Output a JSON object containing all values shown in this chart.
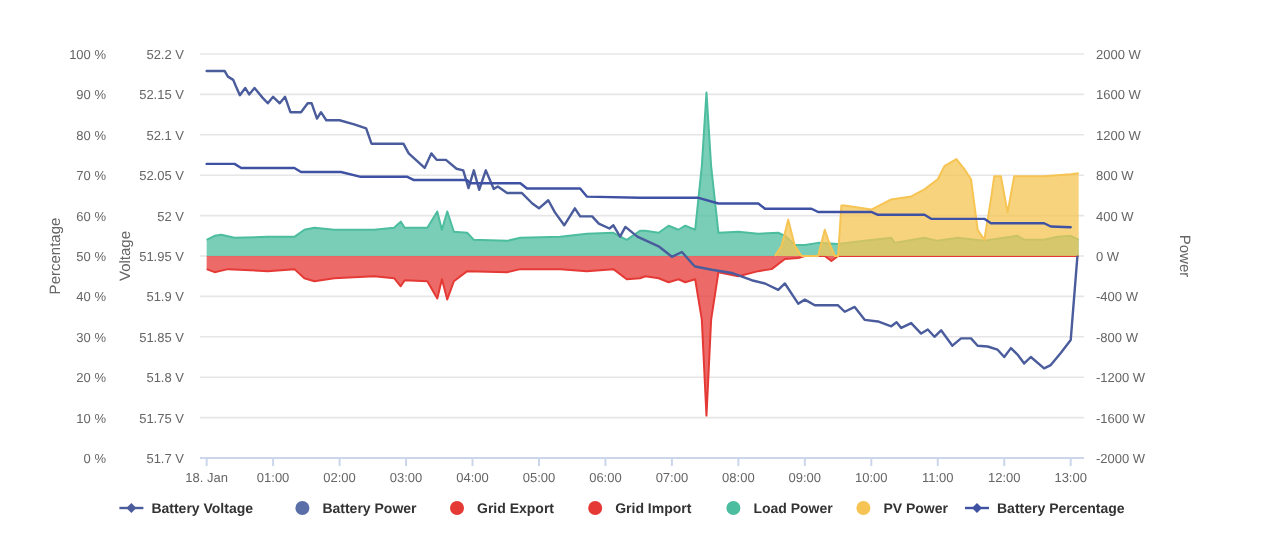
{
  "chart_data": {
    "type": "line",
    "ylabel": "Percentage",
    "y2label": "Voltage",
    "y3label": "Power",
    "xlim": [
      -0.1,
      13.2
    ],
    "xticks": [
      {
        "value": 0,
        "label": "18. Jan"
      },
      {
        "value": 1,
        "label": "01:00"
      },
      {
        "value": 2,
        "label": "02:00"
      },
      {
        "value": 3,
        "label": "03:00"
      },
      {
        "value": 4,
        "label": "04:00"
      },
      {
        "value": 5,
        "label": "05:00"
      },
      {
        "value": 6,
        "label": "06:00"
      },
      {
        "value": 7,
        "label": "07:00"
      },
      {
        "value": 8,
        "label": "08:00"
      },
      {
        "value": 9,
        "label": "09:00"
      },
      {
        "value": 10,
        "label": "10:00"
      },
      {
        "value": 11,
        "label": "11:00"
      },
      {
        "value": 12,
        "label": "12:00"
      },
      {
        "value": 13,
        "label": "13:00"
      }
    ],
    "ylim": [
      0,
      100
    ],
    "yticks": [
      {
        "value": 0,
        "label": "0 %"
      },
      {
        "value": 10,
        "label": "10 %"
      },
      {
        "value": 20,
        "label": "20 %"
      },
      {
        "value": 30,
        "label": "30 %"
      },
      {
        "value": 40,
        "label": "40 %"
      },
      {
        "value": 50,
        "label": "50 %"
      },
      {
        "value": 60,
        "label": "60 %"
      },
      {
        "value": 70,
        "label": "70 %"
      },
      {
        "value": 80,
        "label": "80 %"
      },
      {
        "value": 90,
        "label": "90 %"
      },
      {
        "value": 100,
        "label": "100 %"
      }
    ],
    "y2lim": [
      51.7,
      52.2
    ],
    "y2ticks": [
      {
        "value": 51.7,
        "label": "51.7 V"
      },
      {
        "value": 51.75,
        "label": "51.75 V"
      },
      {
        "value": 51.8,
        "label": "51.8 V"
      },
      {
        "value": 51.85,
        "label": "51.85 V"
      },
      {
        "value": 51.9,
        "label": "51.9 V"
      },
      {
        "value": 51.95,
        "label": "51.95 V"
      },
      {
        "value": 52,
        "label": "52 V"
      },
      {
        "value": 52.05,
        "label": "52.05 V"
      },
      {
        "value": 52.1,
        "label": "52.1 V"
      },
      {
        "value": 52.15,
        "label": "52.15 V"
      },
      {
        "value": 52.2,
        "label": "52.2 V"
      }
    ],
    "y3lim": [
      -2000,
      2000
    ],
    "y3ticks": [
      {
        "value": -2000,
        "label": "-2000 W"
      },
      {
        "value": -1600,
        "label": "-1600 W"
      },
      {
        "value": -1200,
        "label": "-1200 W"
      },
      {
        "value": -800,
        "label": "-800 W"
      },
      {
        "value": -400,
        "label": "-400 W"
      },
      {
        "value": 0,
        "label": "0 W"
      },
      {
        "value": 400,
        "label": "400 W"
      },
      {
        "value": 800,
        "label": "800 W"
      },
      {
        "value": 1200,
        "label": "1200 W"
      },
      {
        "value": 1600,
        "label": "1600 W"
      },
      {
        "value": 2000,
        "label": "2000 W"
      }
    ],
    "grid": "y",
    "legend": "bottom",
    "series": [
      {
        "name": "Battery Voltage",
        "axis": "y2",
        "color": "#4a5c9c",
        "x": [
          0,
          0.27,
          0.32,
          0.4,
          0.44,
          0.5,
          0.58,
          0.64,
          0.72,
          0.84,
          0.92,
          1.0,
          1.1,
          1.18,
          1.26,
          1.42,
          1.52,
          1.58,
          1.66,
          1.72,
          1.8,
          2.0,
          2.22,
          2.4,
          2.48,
          2.96,
          3.04,
          3.28,
          3.38,
          3.46,
          3.6,
          3.76,
          3.86,
          3.94,
          4.02,
          4.1,
          4.2,
          4.32,
          4.38,
          4.52,
          4.74,
          4.9,
          5.0,
          5.14,
          5.24,
          5.38,
          5.54,
          5.62,
          5.8,
          5.9,
          6.06,
          6.12,
          6.22,
          6.3,
          6.48,
          6.8,
          7.0,
          7.15,
          7.3,
          7.35,
          7.6,
          7.9,
          8.2,
          8.4,
          8.6,
          8.7,
          8.9,
          9.0,
          9.15,
          9.5,
          9.6,
          9.75,
          9.9,
          10.1,
          10.3,
          10.38,
          10.45,
          10.6,
          10.75,
          10.85,
          10.95,
          11.05,
          11.22,
          11.35,
          11.5,
          11.6,
          11.75,
          11.9,
          12.0,
          12.1,
          12.2,
          12.3,
          12.4,
          12.6,
          12.7,
          12.85,
          13.0,
          13.1
        ],
        "values": [
          52.179,
          52.179,
          52.172,
          52.168,
          52.16,
          52.149,
          52.158,
          52.15,
          52.158,
          52.146,
          52.139,
          52.147,
          52.139,
          52.147,
          52.128,
          52.128,
          52.139,
          52.139,
          52.12,
          52.128,
          52.118,
          52.118,
          52.113,
          52.108,
          52.089,
          52.089,
          52.077,
          52.059,
          52.077,
          52.069,
          52.069,
          52.058,
          52.056,
          52.034,
          52.056,
          52.032,
          52.056,
          52.033,
          52.036,
          52.028,
          52.028,
          52.015,
          52.009,
          52.019,
          52.004,
          51.988,
          52.009,
          51.999,
          51.999,
          51.99,
          51.984,
          51.988,
          51.974,
          51.986,
          51.974,
          51.962,
          51.949,
          51.955,
          51.941,
          51.937,
          51.933,
          51.929,
          51.92,
          51.916,
          51.908,
          51.916,
          51.891,
          51.896,
          51.889,
          51.889,
          51.881,
          51.887,
          51.871,
          51.869,
          51.863,
          51.868,
          51.861,
          51.867,
          51.854,
          51.859,
          51.85,
          51.858,
          51.839,
          51.848,
          51.848,
          51.839,
          51.838,
          51.834,
          51.825,
          51.836,
          51.828,
          51.817,
          51.825,
          51.811,
          51.815,
          51.83,
          51.846,
          51.949
        ]
      },
      {
        "name": "Battery Power",
        "type": "area",
        "axis": "y3",
        "color": "#5a6ea8"
      },
      {
        "name": "Grid Export",
        "type": "area",
        "axis": "y3",
        "color": "#e53935"
      },
      {
        "name": "Grid Import",
        "type": "area",
        "axis": "y3",
        "color": "#e53935",
        "x": [
          0,
          0.12,
          0.32,
          0.92,
          1.32,
          1.47,
          1.62,
          1.92,
          2.52,
          2.82,
          2.92,
          2.98,
          3.32,
          3.47,
          3.54,
          3.62,
          3.72,
          3.92,
          4.52,
          4.72,
          5.32,
          5.72,
          6.12,
          6.32,
          6.52,
          6.6,
          6.8,
          6.95,
          7.1,
          7.2,
          7.35,
          7.45,
          7.52,
          7.59,
          7.7,
          8.0,
          8.3,
          8.5,
          8.7,
          8.9,
          9.0,
          9.3,
          9.4,
          9.5,
          13.12
        ],
        "values": [
          -130,
          -160,
          -130,
          -150,
          -130,
          -220,
          -250,
          -220,
          -200,
          -220,
          -300,
          -240,
          -250,
          -420,
          -230,
          -430,
          -250,
          -150,
          -160,
          -130,
          -130,
          -150,
          -130,
          -230,
          -220,
          -200,
          -220,
          -260,
          -230,
          -260,
          -230,
          -630,
          -1580,
          -630,
          -160,
          -200,
          -150,
          -130,
          -30,
          -20,
          0,
          0,
          -50,
          0,
          0
        ]
      },
      {
        "name": "Load Power",
        "type": "area",
        "axis": "y3",
        "color": "#4dbd9f",
        "x": [
          0,
          0.12,
          0.22,
          0.42,
          0.92,
          1.32,
          1.47,
          1.62,
          1.92,
          2.52,
          2.82,
          2.92,
          2.98,
          3.32,
          3.47,
          3.54,
          3.62,
          3.72,
          3.92,
          4.02,
          4.52,
          4.72,
          5.32,
          5.72,
          6.12,
          6.32,
          6.52,
          6.6,
          6.8,
          6.95,
          7.1,
          7.2,
          7.35,
          7.45,
          7.52,
          7.59,
          7.7,
          8.0,
          8.3,
          8.6,
          8.7,
          8.85,
          9.0,
          9.2,
          9.5,
          9.9,
          10.3,
          10.35,
          10.8,
          11.0,
          11.3,
          11.7,
          12.2,
          12.3,
          12.6,
          12.8,
          13.0,
          13.12
        ],
        "values": [
          160,
          200,
          210,
          180,
          190,
          190,
          260,
          280,
          260,
          260,
          280,
          340,
          280,
          280,
          440,
          260,
          440,
          240,
          230,
          160,
          150,
          180,
          190,
          220,
          230,
          160,
          250,
          250,
          230,
          300,
          260,
          300,
          260,
          890,
          1620,
          890,
          230,
          240,
          220,
          230,
          200,
          110,
          110,
          130,
          120,
          150,
          180,
          130,
          180,
          150,
          180,
          150,
          200,
          160,
          160,
          190,
          200,
          160
        ]
      },
      {
        "name": "PV Power",
        "type": "area",
        "axis": "y3",
        "color": "#f6c453",
        "x": [
          8.55,
          8.65,
          8.75,
          8.85,
          8.95,
          9.2,
          9.3,
          9.35,
          9.45,
          9.5,
          9.55,
          9.6,
          10.0,
          10.3,
          10.6,
          10.8,
          11.0,
          11.1,
          11.28,
          11.4,
          11.5,
          11.6,
          11.7,
          11.8,
          11.85,
          11.95,
          12.05,
          12.15,
          12.25,
          12.6,
          13.0,
          13.12
        ],
        "values": [
          0,
          100,
          360,
          100,
          0,
          0,
          260,
          160,
          0,
          0,
          500,
          500,
          460,
          560,
          590,
          660,
          760,
          890,
          960,
          860,
          760,
          260,
          160,
          560,
          790,
          790,
          430,
          790,
          790,
          790,
          810,
          820
        ]
      },
      {
        "name": "Battery Percentage",
        "color": "#3f51a3",
        "x": [
          0,
          0.42,
          0.52,
          1.32,
          1.42,
          2.02,
          2.32,
          3.02,
          3.12,
          3.92,
          3.97,
          4.72,
          4.82,
          5.62,
          5.72,
          6.52,
          7.4,
          7.7,
          8.3,
          8.4,
          9.1,
          9.2,
          10.0,
          10.1,
          10.8,
          10.9,
          11.7,
          11.8,
          12.6,
          12.7,
          13.0
        ],
        "values": [
          72.8,
          72.8,
          71.8,
          71.8,
          70.8,
          70.8,
          69.6,
          69.6,
          68.8,
          68.8,
          68.0,
          68.0,
          66.7,
          66.7,
          64.7,
          64.4,
          64.4,
          63.0,
          63.0,
          61.7,
          61.7,
          60.9,
          60.9,
          60.2,
          60.2,
          59.2,
          59.2,
          58.1,
          58.1,
          57.3,
          57.1
        ]
      }
    ]
  }
}
